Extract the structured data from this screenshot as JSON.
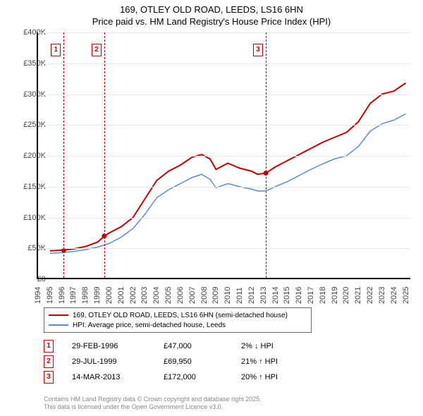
{
  "title_l1": "169, OTLEY OLD ROAD, LEEDS, LS16 6HN",
  "title_l2": "Price paid vs. HM Land Registry's House Price Index (HPI)",
  "chart": {
    "type": "line",
    "xlim": [
      1994,
      2025.5
    ],
    "ylim": [
      0,
      400000
    ],
    "ytick_step": 50000,
    "y_ticks": [
      "£0",
      "£50K",
      "£100K",
      "£150K",
      "£200K",
      "£250K",
      "£300K",
      "£350K",
      "£400K"
    ],
    "x_ticks": [
      1994,
      1995,
      1996,
      1997,
      1998,
      1999,
      2000,
      2001,
      2002,
      2003,
      2004,
      2005,
      2006,
      2007,
      2008,
      2009,
      2010,
      2011,
      2012,
      2013,
      2014,
      2015,
      2016,
      2017,
      2018,
      2019,
      2020,
      2021,
      2022,
      2023,
      2024,
      2025
    ],
    "background_color": "#ffffff",
    "grid_color": "#e8e8e8",
    "axis_color": "#000000",
    "series": [
      {
        "name": "169, OTLEY OLD ROAD, LEEDS, LS16 6HN (semi-detached house)",
        "color": "#c00000",
        "width": 2,
        "points": [
          [
            1995.0,
            46000
          ],
          [
            1996.0,
            47000
          ],
          [
            1997.0,
            49000
          ],
          [
            1998.0,
            53000
          ],
          [
            1999.0,
            60000
          ],
          [
            1999.6,
            70000
          ],
          [
            2000.0,
            75000
          ],
          [
            2001.0,
            85000
          ],
          [
            2002.0,
            100000
          ],
          [
            2003.0,
            130000
          ],
          [
            2004.0,
            160000
          ],
          [
            2005.0,
            175000
          ],
          [
            2006.0,
            185000
          ],
          [
            2007.0,
            198000
          ],
          [
            2007.8,
            202000
          ],
          [
            2008.5,
            195000
          ],
          [
            2009.0,
            178000
          ],
          [
            2010.0,
            188000
          ],
          [
            2011.0,
            180000
          ],
          [
            2012.0,
            175000
          ],
          [
            2012.5,
            170000
          ],
          [
            2013.2,
            172000
          ],
          [
            2014.0,
            182000
          ],
          [
            2015.0,
            192000
          ],
          [
            2016.0,
            202000
          ],
          [
            2017.0,
            212000
          ],
          [
            2018.0,
            222000
          ],
          [
            2019.0,
            230000
          ],
          [
            2020.0,
            238000
          ],
          [
            2021.0,
            255000
          ],
          [
            2022.0,
            285000
          ],
          [
            2023.0,
            300000
          ],
          [
            2024.0,
            305000
          ],
          [
            2025.0,
            318000
          ]
        ]
      },
      {
        "name": "HPI: Average price, semi-detached house, Leeds",
        "color": "#5b8bc9",
        "width": 1.5,
        "points": [
          [
            1995.0,
            42000
          ],
          [
            1996.0,
            43000
          ],
          [
            1997.0,
            45000
          ],
          [
            1998.0,
            48000
          ],
          [
            1999.0,
            52000
          ],
          [
            2000.0,
            58000
          ],
          [
            2001.0,
            68000
          ],
          [
            2002.0,
            82000
          ],
          [
            2003.0,
            105000
          ],
          [
            2004.0,
            132000
          ],
          [
            2005.0,
            145000
          ],
          [
            2006.0,
            155000
          ],
          [
            2007.0,
            165000
          ],
          [
            2007.8,
            170000
          ],
          [
            2008.5,
            162000
          ],
          [
            2009.0,
            148000
          ],
          [
            2010.0,
            155000
          ],
          [
            2011.0,
            150000
          ],
          [
            2012.0,
            146000
          ],
          [
            2012.5,
            143000
          ],
          [
            2013.2,
            143000
          ],
          [
            2014.0,
            150000
          ],
          [
            2015.0,
            158000
          ],
          [
            2016.0,
            168000
          ],
          [
            2017.0,
            178000
          ],
          [
            2018.0,
            187000
          ],
          [
            2019.0,
            195000
          ],
          [
            2020.0,
            200000
          ],
          [
            2021.0,
            215000
          ],
          [
            2022.0,
            240000
          ],
          [
            2023.0,
            252000
          ],
          [
            2024.0,
            258000
          ],
          [
            2025.0,
            268000
          ]
        ]
      }
    ],
    "sale_markers": [
      {
        "label": "1",
        "x": 1996.16,
        "y": 47000,
        "date": "29-FEB-1996",
        "price": "£47,000",
        "pct": "2% ↓ HPI"
      },
      {
        "label": "2",
        "x": 1999.58,
        "y": 69950,
        "date": "29-JUL-1999",
        "price": "£69,950",
        "pct": "21% ↑ HPI"
      },
      {
        "label": "3",
        "x": 2013.2,
        "y": 172000,
        "date": "14-MAR-2013",
        "price": "£172,000",
        "pct": "20% ↑ HPI"
      }
    ]
  },
  "legend": {
    "border_color": "#666666",
    "items": [
      {
        "color": "#c00000",
        "label": "169, OTLEY OLD ROAD, LEEDS, LS16 6HN (semi-detached house)"
      },
      {
        "color": "#5b8bc9",
        "label": "HPI: Average price, semi-detached house, Leeds"
      }
    ]
  },
  "footer_l1": "Contains HM Land Registry data © Crown copyright and database right 2025.",
  "footer_l2": "This data is licensed under the Open Government Licence v3.0."
}
